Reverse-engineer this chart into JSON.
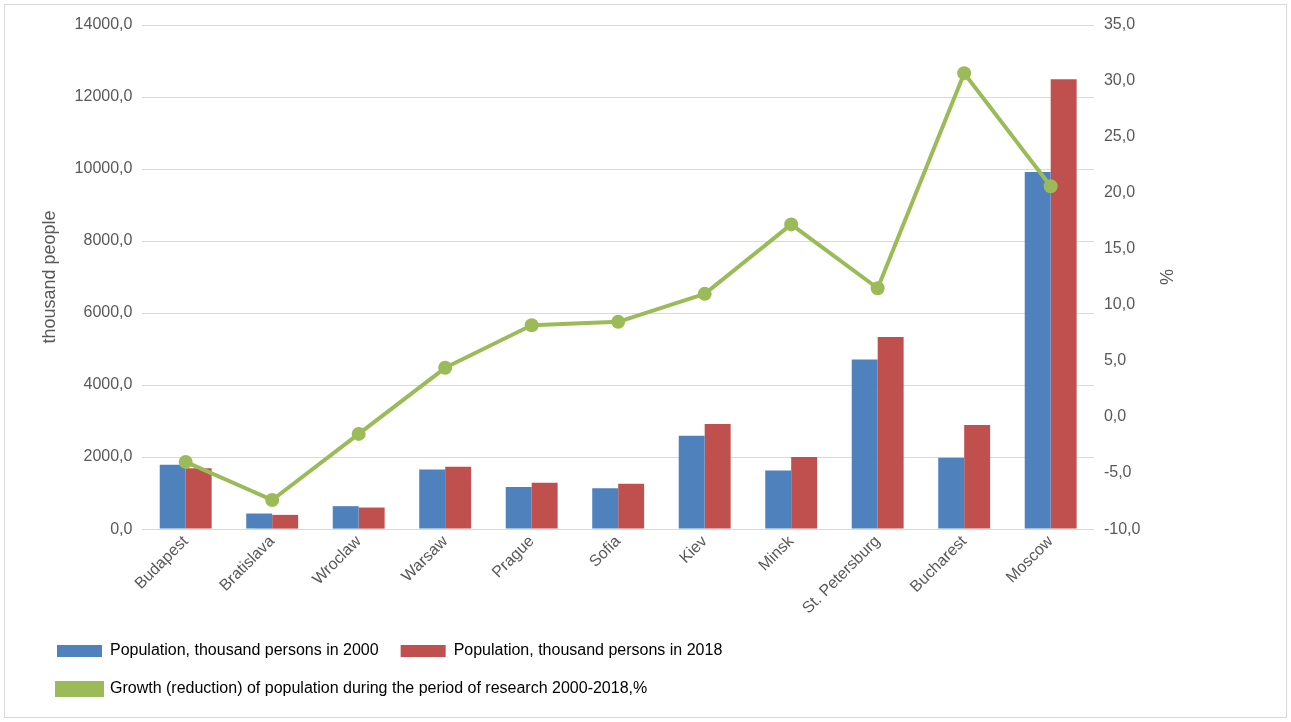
{
  "chart_data": {
    "type": "bar",
    "categories": [
      "Budapest",
      "Bratislava",
      "Wroclaw",
      "Warsaw",
      "Prague",
      "Sofia",
      "Kiev",
      "Minsk",
      "St. Petersburg",
      "Bucharest",
      "Moscow"
    ],
    "series": [
      {
        "name": "Population, thousand persons in 2000",
        "color": "#4f81bd",
        "values": [
          1790,
          433,
          637,
          1656,
          1172,
          1135,
          2596,
          1631,
          4709,
          1980,
          9915
        ]
      },
      {
        "name": "Population, thousand persons in 2018",
        "color": "#c0504d",
        "values": [
          1690,
          395,
          599,
          1732,
          1287,
          1262,
          2922,
          2000,
          5333,
          2894,
          12496
        ]
      },
      {
        "name": "Growth (reduction) of population during the period of research 2000-2018,%",
        "type": "line",
        "axis": "y2",
        "color": "#9bbb59",
        "values": [
          -4.0,
          -7.4,
          -1.5,
          4.4,
          8.2,
          8.5,
          11.0,
          17.2,
          11.5,
          30.7,
          20.6
        ]
      }
    ],
    "ylabel": "thousand people",
    "y2label": "%",
    "ylim": [
      0,
      14000
    ],
    "yticks": [
      {
        "value": 0,
        "label": "0,0"
      },
      {
        "value": 2000,
        "label": "2000,0"
      },
      {
        "value": 4000,
        "label": "4000,0"
      },
      {
        "value": 6000,
        "label": "6000,0"
      },
      {
        "value": 8000,
        "label": "8000,0"
      },
      {
        "value": 10000,
        "label": "10000,0"
      },
      {
        "value": 12000,
        "label": "12000,0"
      },
      {
        "value": 14000,
        "label": "14000,0"
      }
    ],
    "y2lim": [
      -10,
      35
    ],
    "y2ticks": [
      {
        "value": -10,
        "label": "-10,0"
      },
      {
        "value": -5,
        "label": "-5,0"
      },
      {
        "value": 0,
        "label": "0,0"
      },
      {
        "value": 5,
        "label": "5,0"
      },
      {
        "value": 10,
        "label": "10,0"
      },
      {
        "value": 15,
        "label": "15,0"
      },
      {
        "value": 20,
        "label": "20,0"
      },
      {
        "value": 25,
        "label": "25,0"
      },
      {
        "value": 30,
        "label": "30,0"
      },
      {
        "value": 35,
        "label": "35,0"
      }
    ],
    "grid": "y",
    "legend": "bottom",
    "marker": "circle",
    "line_style": "solid"
  }
}
